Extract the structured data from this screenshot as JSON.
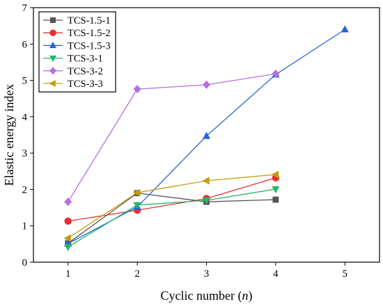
{
  "chart_data": {
    "type": "line",
    "title": "",
    "xlabel": "Cyclic number (",
    "xlabel_var": "n",
    "xlabel_close": ")",
    "ylabel": "Elastic energy index",
    "xlim": [
      0.5,
      5.5
    ],
    "ylim": [
      0,
      7
    ],
    "xticks": [
      "1",
      "2",
      "3",
      "4",
      "5"
    ],
    "xtick_values": [
      1,
      2,
      3,
      4,
      5
    ],
    "yticks": [
      "0",
      "1",
      "2",
      "3",
      "4",
      "5",
      "6",
      "7"
    ],
    "ytick_values": [
      0,
      1,
      2,
      3,
      4,
      5,
      6,
      7
    ],
    "grid": false,
    "legend_position": "top-left",
    "series": [
      {
        "name": "TCS-1.5-1",
        "color": "#555555",
        "marker": "square",
        "x": [
          1,
          2,
          3,
          4
        ],
        "y": [
          0.52,
          1.9,
          1.66,
          1.72
        ]
      },
      {
        "name": "TCS-1.5-2",
        "color": "#e8302e",
        "marker": "circle",
        "x": [
          1,
          2,
          3,
          4
        ],
        "y": [
          1.13,
          1.43,
          1.75,
          2.32
        ]
      },
      {
        "name": "TCS-1.5-3",
        "color": "#2462d8",
        "marker": "triangle-up",
        "x": [
          1,
          2,
          3,
          4,
          5
        ],
        "y": [
          0.51,
          1.52,
          3.47,
          5.16,
          6.4
        ]
      },
      {
        "name": "TCS-3-1",
        "color": "#26b36a",
        "marker": "triangle-down",
        "x": [
          1,
          2,
          3,
          4
        ],
        "y": [
          0.42,
          1.57,
          1.7,
          2.01
        ]
      },
      {
        "name": "TCS-3-2",
        "color": "#b86ee0",
        "marker": "diamond",
        "x": [
          1,
          2,
          3,
          4
        ],
        "y": [
          1.66,
          4.76,
          4.88,
          5.18
        ]
      },
      {
        "name": "TCS-3-3",
        "color": "#c39b0b",
        "marker": "triangle-left",
        "x": [
          1,
          2,
          3,
          4
        ],
        "y": [
          0.66,
          1.91,
          2.24,
          2.41
        ]
      }
    ]
  }
}
